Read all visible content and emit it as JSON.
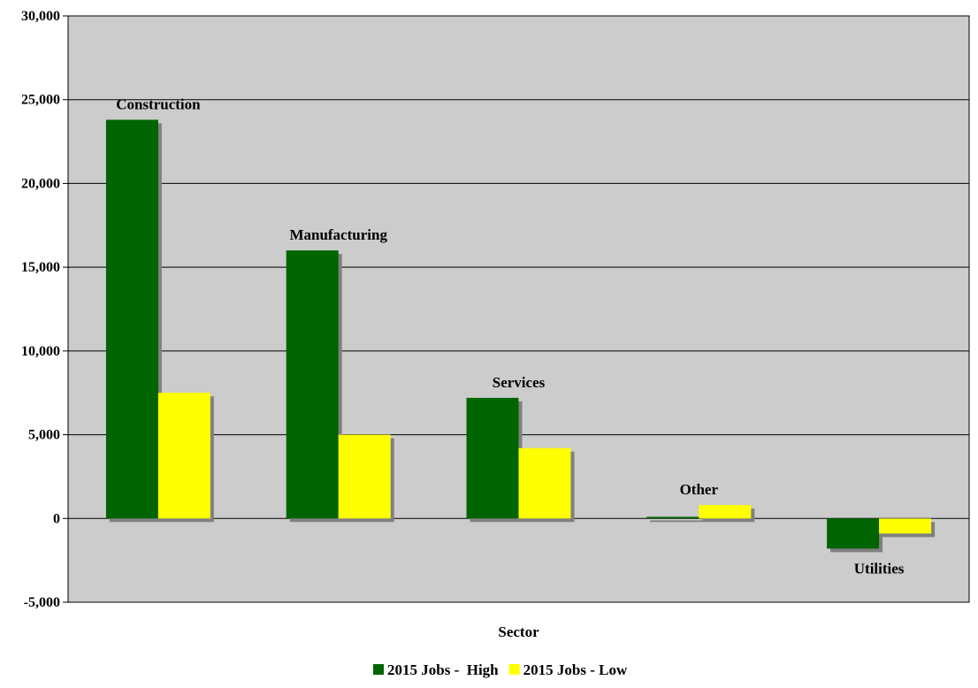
{
  "chart_data": {
    "type": "bar",
    "xlabel": "Sector",
    "ylabel": "",
    "ylim": [
      -5000,
      30000
    ],
    "yticks": [
      30000,
      25000,
      20000,
      15000,
      10000,
      5000,
      0,
      -5000
    ],
    "ytick_labels": [
      "30,000",
      "25,000",
      "20,000",
      "15,000",
      "10,000",
      "5,000",
      "0",
      "-5,000"
    ],
    "grid": true,
    "legend_position": "bottom",
    "categories": [
      "Construction",
      "Manufacturing",
      "Services",
      "Other",
      "Utilities"
    ],
    "series": [
      {
        "name": "2015 Jobs -  High",
        "color": "#006400",
        "values": [
          23800,
          16000,
          7200,
          100,
          -1800
        ]
      },
      {
        "name": "2015 Jobs - Low",
        "color": "#FFFF00",
        "values": [
          7500,
          5000,
          4200,
          800,
          -900
        ]
      }
    ],
    "plot_background": "#CCCCCC",
    "shadow_color": "#808080"
  }
}
